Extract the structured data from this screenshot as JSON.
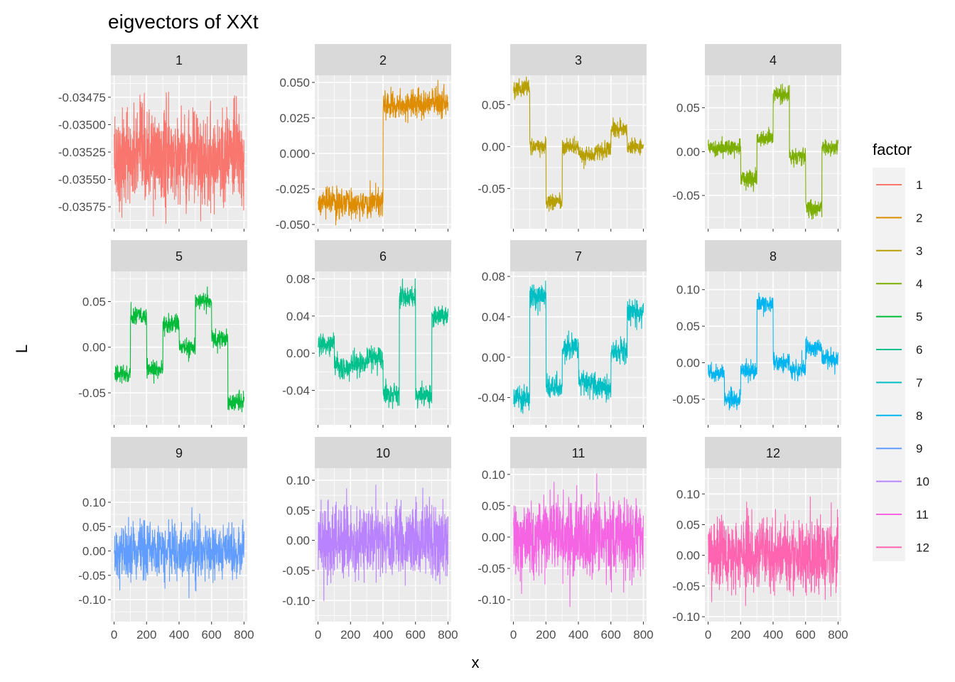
{
  "chart_data": {
    "type": "line",
    "title": "eigvectors of XXt",
    "xlabel": "x",
    "ylabel": "L",
    "layout": "facet_wrap 3 rows x 4 cols, free y scales",
    "legend": {
      "title": "factor",
      "position": "right"
    },
    "x_range": [
      1,
      800
    ],
    "x_ticks": [
      "0",
      "200",
      "400",
      "600",
      "800"
    ],
    "grid": true,
    "panels": [
      {
        "factor": "1",
        "color": "#F8766D",
        "y_range": [
          -0.03595,
          -0.03455
        ],
        "y_ticks": [
          -0.03575,
          -0.0355,
          -0.03525,
          -0.035,
          -0.03475
        ],
        "y_tick_labels": [
          "-0.03575",
          "-0.03550",
          "-0.03525",
          "-0.03500",
          "-0.03475"
        ],
        "segments": [
          {
            "x": [
              1,
              800
            ],
            "mean": -0.0353
          }
        ],
        "noise_sd": 0.00022
      },
      {
        "factor": "2",
        "color": "#DE8C00",
        "y_range": [
          -0.053,
          0.055
        ],
        "y_ticks": [
          -0.05,
          -0.025,
          0,
          0.025,
          0.05
        ],
        "y_tick_labels": [
          "-0.050",
          "-0.025",
          "0.000",
          "0.025",
          "0.050"
        ],
        "segments": [
          {
            "x": [
              1,
              400
            ],
            "mean": -0.035
          },
          {
            "x": [
              401,
              800
            ],
            "mean": 0.035
          }
        ],
        "noise_sd": 0.005
      },
      {
        "factor": "3",
        "color": "#B79F00",
        "y_range": [
          -0.098,
          0.085
        ],
        "y_ticks": [
          -0.05,
          0,
          0.05
        ],
        "y_tick_labels": [
          "-0.05",
          "0.00",
          "0.05"
        ],
        "segments": [
          {
            "x": [
              1,
              100
            ],
            "mean": 0.07
          },
          {
            "x": [
              101,
              200
            ],
            "mean": 0.0
          },
          {
            "x": [
              201,
              300
            ],
            "mean": -0.065
          },
          {
            "x": [
              301,
              400
            ],
            "mean": 0.0
          },
          {
            "x": [
              401,
              500
            ],
            "mean": -0.01
          },
          {
            "x": [
              501,
              600
            ],
            "mean": -0.005
          },
          {
            "x": [
              601,
              700
            ],
            "mean": 0.02
          },
          {
            "x": [
              701,
              800
            ],
            "mean": 0.0
          }
        ],
        "noise_sd": 0.005
      },
      {
        "factor": "4",
        "color": "#7CAE00",
        "y_range": [
          -0.088,
          0.087
        ],
        "y_ticks": [
          -0.05,
          0,
          0.05
        ],
        "y_tick_labels": [
          "-0.05",
          "0.00",
          "0.05"
        ],
        "segments": [
          {
            "x": [
              1,
              200
            ],
            "mean": 0.005
          },
          {
            "x": [
              201,
              300
            ],
            "mean": -0.03
          },
          {
            "x": [
              301,
              400
            ],
            "mean": 0.015
          },
          {
            "x": [
              401,
              500
            ],
            "mean": 0.065
          },
          {
            "x": [
              501,
              600
            ],
            "mean": -0.005
          },
          {
            "x": [
              601,
              700
            ],
            "mean": -0.065
          },
          {
            "x": [
              701,
              800
            ],
            "mean": 0.005
          }
        ],
        "noise_sd": 0.005
      },
      {
        "factor": "5",
        "color": "#00BA38",
        "y_range": [
          -0.085,
          0.083
        ],
        "y_ticks": [
          -0.05,
          0,
          0.05
        ],
        "y_tick_labels": [
          "-0.05",
          "0.00",
          "0.05"
        ],
        "segments": [
          {
            "x": [
              1,
              100
            ],
            "mean": -0.03
          },
          {
            "x": [
              101,
              200
            ],
            "mean": 0.035
          },
          {
            "x": [
              201,
              300
            ],
            "mean": -0.025
          },
          {
            "x": [
              301,
              400
            ],
            "mean": 0.025
          },
          {
            "x": [
              401,
              500
            ],
            "mean": 0.0
          },
          {
            "x": [
              501,
              600
            ],
            "mean": 0.05
          },
          {
            "x": [
              601,
              700
            ],
            "mean": 0.01
          },
          {
            "x": [
              701,
              800
            ],
            "mean": -0.06
          }
        ],
        "noise_sd": 0.005
      },
      {
        "factor": "6",
        "color": "#00C08B",
        "y_range": [
          -0.077,
          0.088
        ],
        "y_ticks": [
          -0.04,
          0,
          0.04,
          0.08
        ],
        "y_tick_labels": [
          "-0.04",
          "0.00",
          "0.04",
          "0.08"
        ],
        "segments": [
          {
            "x": [
              1,
              100
            ],
            "mean": 0.01
          },
          {
            "x": [
              101,
              200
            ],
            "mean": -0.015
          },
          {
            "x": [
              201,
              300
            ],
            "mean": -0.01
          },
          {
            "x": [
              301,
              400
            ],
            "mean": -0.005
          },
          {
            "x": [
              401,
              500
            ],
            "mean": -0.045
          },
          {
            "x": [
              501,
              600
            ],
            "mean": 0.06
          },
          {
            "x": [
              601,
              700
            ],
            "mean": -0.045
          },
          {
            "x": [
              701,
              800
            ],
            "mean": 0.04
          }
        ],
        "noise_sd": 0.006
      },
      {
        "factor": "7",
        "color": "#00BFC4",
        "y_range": [
          -0.067,
          0.085
        ],
        "y_ticks": [
          -0.04,
          0,
          0.04,
          0.08
        ],
        "y_tick_labels": [
          "-0.04",
          "0.00",
          "0.04",
          "0.08"
        ],
        "segments": [
          {
            "x": [
              1,
              100
            ],
            "mean": -0.04
          },
          {
            "x": [
              101,
              200
            ],
            "mean": 0.06
          },
          {
            "x": [
              201,
              300
            ],
            "mean": -0.03
          },
          {
            "x": [
              301,
              400
            ],
            "mean": 0.01
          },
          {
            "x": [
              401,
              500
            ],
            "mean": -0.025
          },
          {
            "x": [
              501,
              600
            ],
            "mean": -0.03
          },
          {
            "x": [
              601,
              700
            ],
            "mean": 0.005
          },
          {
            "x": [
              701,
              800
            ],
            "mean": 0.045
          }
        ],
        "noise_sd": 0.006
      },
      {
        "factor": "8",
        "color": "#00B4F0",
        "y_range": [
          -0.085,
          0.125
        ],
        "y_ticks": [
          -0.05,
          0,
          0.05,
          0.1
        ],
        "y_tick_labels": [
          "-0.05",
          "0.00",
          "0.05",
          "0.10"
        ],
        "segments": [
          {
            "x": [
              1,
              100
            ],
            "mean": -0.015
          },
          {
            "x": [
              101,
              200
            ],
            "mean": -0.05
          },
          {
            "x": [
              201,
              300
            ],
            "mean": -0.01
          },
          {
            "x": [
              301,
              400
            ],
            "mean": 0.08
          },
          {
            "x": [
              401,
              500
            ],
            "mean": 0.0
          },
          {
            "x": [
              501,
              600
            ],
            "mean": -0.01
          },
          {
            "x": [
              601,
              700
            ],
            "mean": 0.02
          },
          {
            "x": [
              701,
              800
            ],
            "mean": 0.005
          }
        ],
        "noise_sd": 0.006
      },
      {
        "factor": "9",
        "color": "#619CFF",
        "y_range": [
          -0.145,
          0.17
        ],
        "y_ticks": [
          -0.1,
          -0.05,
          0,
          0.05,
          0.1
        ],
        "y_tick_labels": [
          "-0.10",
          "-0.05",
          "0.00",
          "0.05",
          "0.10"
        ],
        "segments": [
          {
            "x": [
              1,
              800
            ],
            "mean": 0.0
          }
        ],
        "noise_sd": 0.028
      },
      {
        "factor": "10",
        "color": "#B983FF",
        "y_range": [
          -0.135,
          0.12
        ],
        "y_ticks": [
          -0.1,
          -0.05,
          0,
          0.05,
          0.1
        ],
        "y_tick_labels": [
          "-0.10",
          "-0.05",
          "0.00",
          "0.05",
          "0.10"
        ],
        "segments": [
          {
            "x": [
              1,
              800
            ],
            "mean": 0.0
          }
        ],
        "noise_sd": 0.03
      },
      {
        "factor": "11",
        "color": "#F564E3",
        "y_range": [
          -0.135,
          0.11
        ],
        "y_ticks": [
          -0.1,
          -0.05,
          0,
          0.05,
          0.1
        ],
        "y_tick_labels": [
          "-0.10",
          "-0.05",
          "0.00",
          "0.05",
          "0.10"
        ],
        "segments": [
          {
            "x": [
              1,
              800
            ],
            "mean": 0.0
          }
        ],
        "noise_sd": 0.03
      },
      {
        "factor": "12",
        "color": "#FF64B0",
        "y_range": [
          -0.108,
          0.142
        ],
        "y_ticks": [
          -0.1,
          -0.05,
          0,
          0.05,
          0.1
        ],
        "y_tick_labels": [
          "-0.10",
          "-0.05",
          "0.00",
          "0.05",
          "0.10"
        ],
        "segments": [
          {
            "x": [
              1,
              800
            ],
            "mean": 0.0
          }
        ],
        "noise_sd": 0.03
      }
    ]
  }
}
